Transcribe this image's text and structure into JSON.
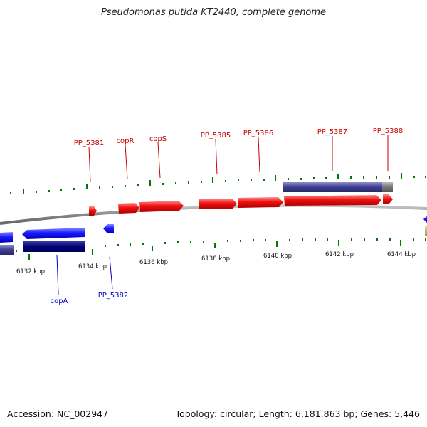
{
  "title": "Pseudomonas putida KT2440, complete genome",
  "footer": {
    "accession": "Accession: NC_002947",
    "stats": "Topology: circular; Length: 6,181,863 bp; Genes: 5,446"
  },
  "colors": {
    "forward_gene": "#ee0000",
    "reverse_gene": "#1a1aff",
    "reverse_gene_dark": "#00007a",
    "forward_label": "#cc0000",
    "reverse_label": "#0000cc",
    "backbone": "#888888",
    "tick": "#007a00",
    "feature_band": "#3d3d8f"
  },
  "scale_labels": [
    "6132 kbp",
    "6134 kbp",
    "6136 kbp",
    "6138 kbp",
    "6140 kbp",
    "6142 kbp",
    "6144 kbp"
  ],
  "forward_gene_labels": [
    "PP_5381",
    "copR",
    "copS",
    "PP_5385",
    "PP_5386",
    "PP_5387",
    "PP_5388"
  ],
  "reverse_gene_labels": [
    "copA",
    "PP_5382"
  ]
}
